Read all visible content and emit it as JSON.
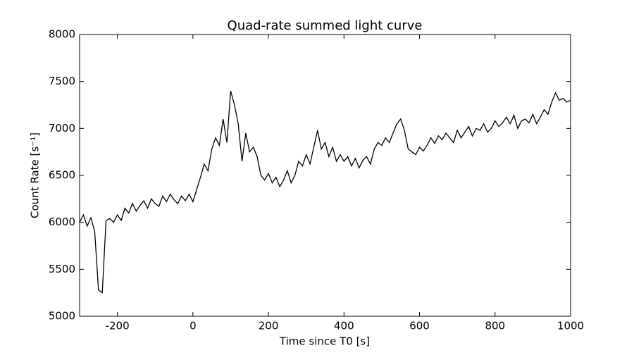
{
  "chart_data": {
    "type": "line",
    "title": "Quad-rate summed light curve",
    "xlabel": "Time since T0 [s]",
    "ylabel": "Count Rate [s⁻¹]",
    "x": [
      -300,
      -290,
      -280,
      -270,
      -260,
      -250,
      -240,
      -230,
      -220,
      -210,
      -200,
      -190,
      -180,
      -170,
      -160,
      -150,
      -140,
      -130,
      -120,
      -110,
      -100,
      -90,
      -80,
      -70,
      -60,
      -50,
      -40,
      -30,
      -20,
      -10,
      0,
      10,
      20,
      30,
      40,
      50,
      60,
      70,
      80,
      90,
      100,
      110,
      120,
      130,
      140,
      150,
      160,
      170,
      180,
      190,
      200,
      210,
      220,
      230,
      240,
      250,
      260,
      270,
      280,
      290,
      300,
      310,
      320,
      330,
      340,
      350,
      360,
      370,
      380,
      390,
      400,
      410,
      420,
      430,
      440,
      450,
      460,
      470,
      480,
      490,
      500,
      510,
      520,
      530,
      540,
      550,
      560,
      570,
      580,
      590,
      600,
      610,
      620,
      630,
      640,
      650,
      660,
      670,
      680,
      690,
      700,
      710,
      720,
      730,
      740,
      750,
      760,
      770,
      780,
      790,
      800,
      810,
      820,
      830,
      840,
      850,
      860,
      870,
      880,
      890,
      900,
      910,
      920,
      930,
      940,
      950,
      960,
      970,
      980,
      990,
      1000
    ],
    "series": [
      {
        "color": "#000000",
        "values": [
          6000,
          6080,
          5960,
          6050,
          5900,
          5280,
          5250,
          6020,
          6040,
          6000,
          6080,
          6020,
          6150,
          6100,
          6200,
          6120,
          6180,
          6230,
          6150,
          6250,
          6200,
          6170,
          6280,
          6220,
          6300,
          6240,
          6200,
          6280,
          6230,
          6300,
          6220,
          6350,
          6480,
          6620,
          6550,
          6780,
          6900,
          6820,
          7100,
          6850,
          7400,
          7250,
          7050,
          6650,
          6950,
          6750,
          6800,
          6700,
          6500,
          6450,
          6520,
          6420,
          6480,
          6380,
          6450,
          6550,
          6420,
          6500,
          6650,
          6600,
          6720,
          6620,
          6800,
          6980,
          6780,
          6850,
          6700,
          6800,
          6650,
          6720,
          6650,
          6700,
          6600,
          6680,
          6580,
          6660,
          6700,
          6620,
          6780,
          6850,
          6820,
          6900,
          6850,
          6950,
          7050,
          7100,
          6980,
          6780,
          6750,
          6720,
          6800,
          6760,
          6820,
          6900,
          6840,
          6920,
          6880,
          6950,
          6900,
          6850,
          6980,
          6900,
          6960,
          7020,
          6920,
          7000,
          6980,
          7050,
          6960,
          7000,
          7080,
          7020,
          7060,
          7120,
          7050,
          7140,
          7000,
          7080,
          7100,
          7060,
          7150,
          7050,
          7120,
          7200,
          7150,
          7280,
          7380,
          7300,
          7320,
          7280,
          7300
        ]
      }
    ],
    "xlim": [
      -300,
      1000
    ],
    "xticks": [
      -200,
      0,
      200,
      400,
      600,
      800,
      1000
    ],
    "ylim": [
      5000,
      8000
    ],
    "yticks": [
      5000,
      5500,
      6000,
      6500,
      7000,
      7500,
      8000
    ]
  }
}
